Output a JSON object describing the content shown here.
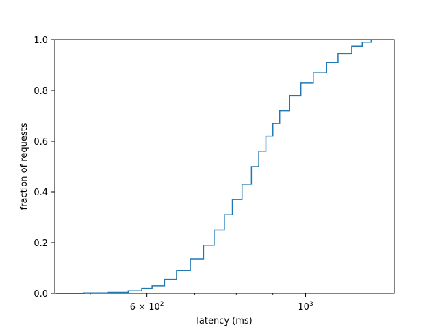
{
  "chart_data": {
    "type": "line",
    "title": "",
    "xlabel": "latency (ms)",
    "ylabel": "fraction of requests",
    "xscale": "log",
    "xlim": [
      446,
      1330
    ],
    "ylim": [
      0,
      1
    ],
    "grid": false,
    "legend": "none",
    "x_major_ticks": [
      {
        "value": 600,
        "label_base": "6 × 10",
        "label_exp": "2"
      },
      {
        "value": 1000,
        "label_base": "10",
        "label_exp": "3"
      }
    ],
    "x_minor_ticks": [
      500,
      700,
      800,
      900
    ],
    "y_ticks": [
      {
        "value": 0.0,
        "label": "0.0"
      },
      {
        "value": 0.2,
        "label": "0.2"
      },
      {
        "value": 0.4,
        "label": "0.4"
      },
      {
        "value": 0.6,
        "label": "0.6"
      },
      {
        "value": 0.8,
        "label": "0.8"
      },
      {
        "value": 1.0,
        "label": "1.0"
      }
    ],
    "series": [
      {
        "color": "#1f77b4",
        "x": [
          448,
          490,
          530,
          565,
          590,
          610,
          635,
          660,
          690,
          720,
          745,
          770,
          790,
          815,
          840,
          860,
          880,
          900,
          920,
          950,
          985,
          1025,
          1070,
          1110,
          1160,
          1200,
          1235
        ],
        "y": [
          0.0,
          0.002,
          0.004,
          0.01,
          0.02,
          0.03,
          0.055,
          0.09,
          0.135,
          0.19,
          0.25,
          0.31,
          0.37,
          0.43,
          0.5,
          0.56,
          0.62,
          0.67,
          0.72,
          0.78,
          0.83,
          0.87,
          0.91,
          0.945,
          0.975,
          0.99,
          1.0
        ]
      }
    ]
  }
}
